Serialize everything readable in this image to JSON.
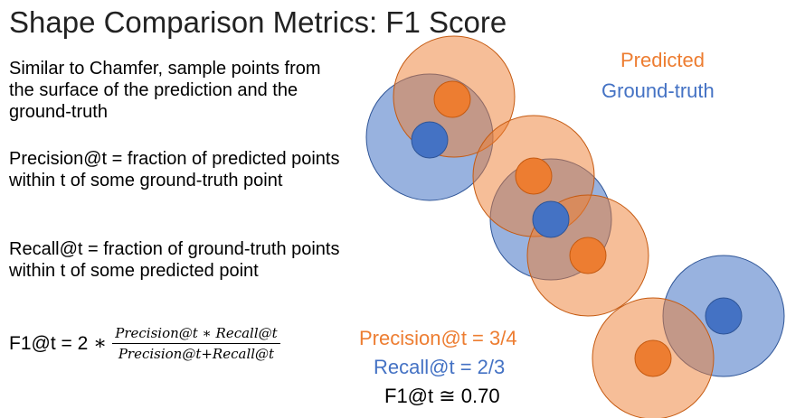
{
  "slide": {
    "title": "Shape Comparison Metrics: F1 Score",
    "paragraphs": [
      "Similar to Chamfer, sample points from the surface of the prediction and the ground-truth",
      "Precision@t = fraction of predicted points within t of some ground-truth point",
      "Recall@t = fraction of ground-truth points within t of some predicted point"
    ],
    "formula": {
      "lhs": "F1@t = 2",
      "times": "∗",
      "numerator": "Precision@t ∗ Recall@t",
      "denominator": "Precision@t+Recall@t"
    },
    "legend": {
      "predicted": "Predicted",
      "ground_truth": "Ground-truth"
    },
    "results": {
      "precision": "Precision@t = 3/4",
      "recall": "Recall@t = 2/3",
      "f1": "F1@t ≅ 0.70"
    }
  },
  "colors": {
    "predicted": "#ed7d31",
    "predicted_fill": "#f4b183",
    "ground_truth": "#4472c4",
    "ground_truth_fill": "#8faadc"
  }
}
